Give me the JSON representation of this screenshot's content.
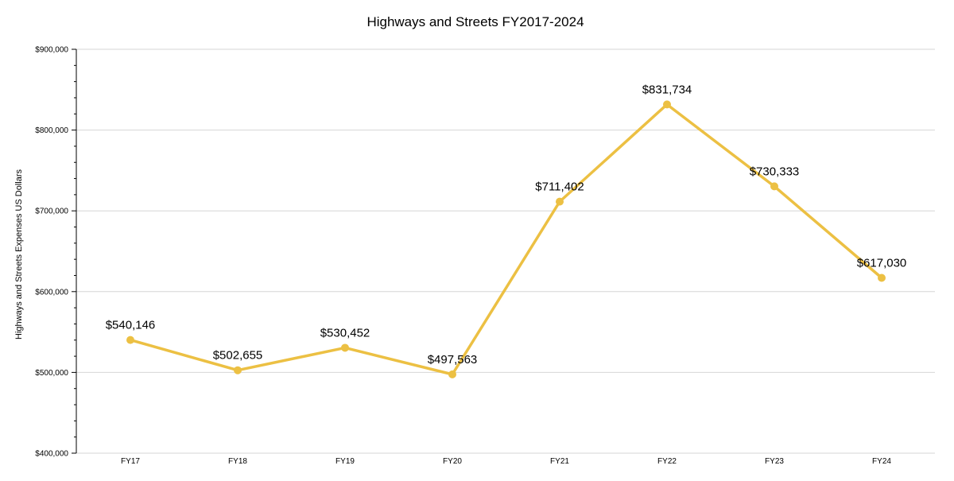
{
  "chart_data": {
    "type": "line",
    "title": "Highways and Streets FY2017-2024",
    "xlabel": "",
    "ylabel": "Highways and Streets Expenses US Dollars",
    "categories": [
      "FY17",
      "FY18",
      "FY19",
      "FY20",
      "FY21",
      "FY22",
      "FY23",
      "FY24"
    ],
    "series": [
      {
        "values": [
          540146,
          502655,
          530452,
          497563,
          711402,
          831734,
          730333,
          617030
        ],
        "data_labels": [
          "$540,146",
          "$502,655",
          "$530,452",
          "$497,563",
          "$711,402",
          "$831,734",
          "$730,333",
          "$617,030"
        ]
      }
    ],
    "ylim": [
      400000,
      900000
    ],
    "yticks": [
      400000,
      500000,
      600000,
      700000,
      800000,
      900000
    ],
    "ytick_labels": [
      "$400,000",
      "$500,000",
      "$600,000",
      "$700,000",
      "$800,000",
      "$900,000"
    ],
    "grid": true,
    "legend": "none",
    "line_color": "#ECC043"
  }
}
